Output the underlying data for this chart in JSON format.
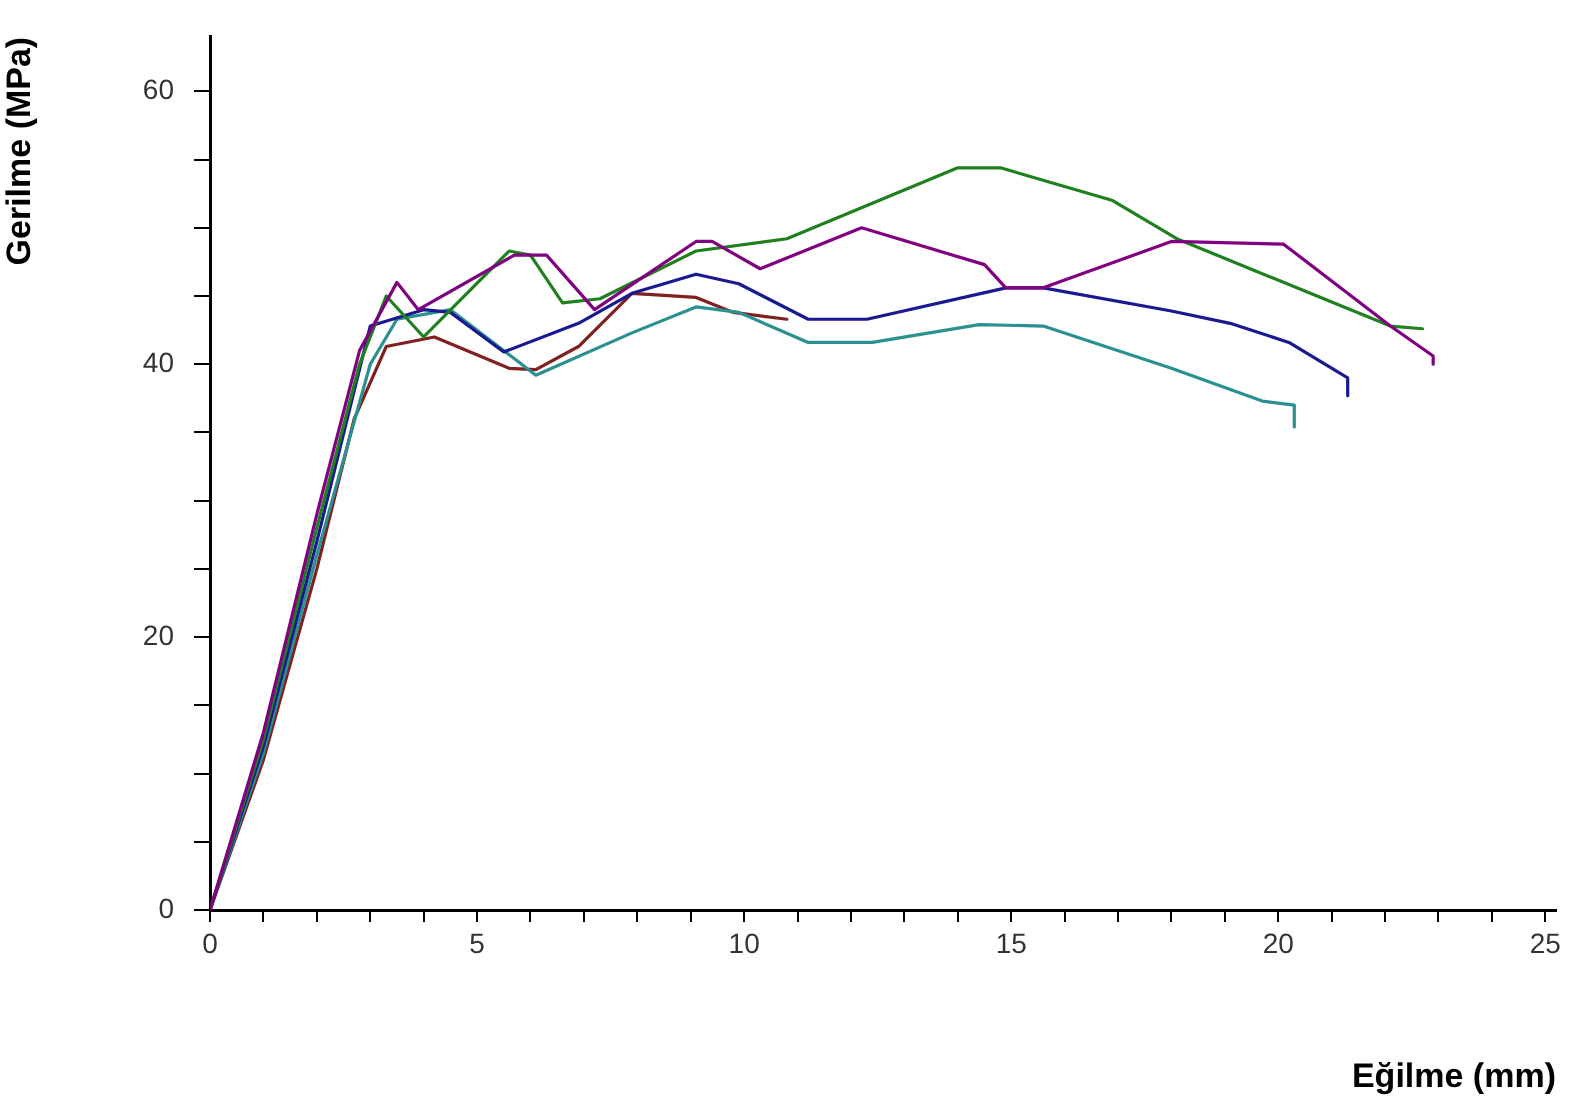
{
  "chart_data": {
    "type": "line",
    "xlabel": "Eğilme (mm)",
    "ylabel": "Gerilme (MPa)",
    "xlim": [
      0,
      25.2
    ],
    "ylim": [
      0,
      64
    ],
    "xticks": [
      0,
      {
        "value": 1,
        "label": null
      },
      {
        "value": 2,
        "label": null
      },
      {
        "value": 3,
        "label": null
      },
      {
        "value": 4,
        "label": null
      },
      5,
      {
        "value": 6,
        "label": null
      },
      {
        "value": 7,
        "label": null
      },
      {
        "value": 8,
        "label": null
      },
      {
        "value": 9,
        "label": null
      },
      10,
      {
        "value": 11,
        "label": null
      },
      {
        "value": 12,
        "label": null
      },
      {
        "value": 13,
        "label": null
      },
      {
        "value": 14,
        "label": null
      },
      15,
      {
        "value": 16,
        "label": null
      },
      {
        "value": 17,
        "label": null
      },
      {
        "value": 18,
        "label": null
      },
      {
        "value": 19,
        "label": null
      },
      20,
      {
        "value": 21,
        "label": null
      },
      {
        "value": 22,
        "label": null
      },
      {
        "value": 23,
        "label": null
      },
      {
        "value": 24,
        "label": null
      },
      25
    ],
    "yticks": [
      0,
      {
        "value": 5,
        "label": null
      },
      {
        "value": 10,
        "label": null
      },
      {
        "value": 15,
        "label": null
      },
      20,
      {
        "value": 25,
        "label": null
      },
      {
        "value": 30,
        "label": null
      },
      {
        "value": 35,
        "label": null
      },
      40,
      {
        "value": 45,
        "label": null
      },
      {
        "value": 50,
        "label": null
      },
      {
        "value": 55,
        "label": null
      },
      60
    ],
    "grid": false,
    "legend": false,
    "marker": "none",
    "line_style": "solid",
    "series": [
      {
        "color": "#800080",
        "x": [
          0,
          1,
          2,
          2.8,
          3.5,
          3.9,
          5.7,
          6.3,
          7.2,
          9.1,
          9.4,
          10.3,
          12.2,
          14.5,
          14.9,
          15.6,
          18,
          20.1,
          22.1,
          22.9,
          22.9
        ],
        "values": [
          0,
          13,
          29,
          41,
          46,
          44,
          48,
          48,
          44,
          49,
          49,
          47,
          50,
          47.3,
          45.6,
          45.6,
          49,
          48.8,
          42.8,
          40.6,
          40
        ]
      },
      {
        "color": "#208020",
        "x": [
          0,
          1,
          2,
          2.8,
          3.3,
          4,
          5.6,
          6,
          6.6,
          7.3,
          9.1,
          10.8,
          14,
          14.8,
          16.9,
          18.1,
          22.1,
          22.7
        ],
        "values": [
          0,
          12.5,
          28,
          40,
          45,
          42,
          48.3,
          48,
          44.5,
          44.8,
          48.3,
          49.2,
          54.4,
          54.4,
          52,
          49.2,
          42.8,
          42.6
        ]
      },
      {
        "color": "#1a1a90",
        "x": [
          0,
          1,
          2,
          3,
          4,
          4.5,
          5.5,
          6.9,
          7.9,
          9.1,
          9.9,
          11.2,
          12.3,
          14.9,
          15.6,
          18,
          19.1,
          20.2,
          21.3,
          21.3
        ],
        "values": [
          0,
          12,
          27,
          42.8,
          44,
          43.8,
          40.9,
          43,
          45.2,
          46.6,
          45.9,
          43.3,
          43.3,
          45.6,
          45.6,
          43.9,
          43,
          41.6,
          39,
          37.7
        ]
      },
      {
        "color": "#2a9090",
        "x": [
          0,
          1,
          2,
          3,
          3.5,
          4.5,
          5.4,
          6.1,
          7.9,
          9.1,
          9.9,
          11.2,
          12.4,
          14.4,
          15.6,
          18,
          19.7,
          20.3,
          20.3
        ],
        "values": [
          0,
          11.5,
          26,
          40,
          43.3,
          44,
          41.3,
          39.2,
          42.3,
          44.2,
          43.8,
          41.6,
          41.6,
          42.9,
          42.8,
          39.7,
          37.3,
          37,
          35.4
        ]
      },
      {
        "color": "#802020",
        "x": [
          0,
          1,
          2,
          2.7,
          3.3,
          4.2,
          5.6,
          6.1,
          6.9,
          7.9,
          9.1,
          9.8,
          10.8
        ],
        "values": [
          0,
          11,
          25,
          36,
          41.3,
          42,
          39.7,
          39.6,
          41.3,
          45.2,
          44.9,
          43.8,
          43.3
        ]
      }
    ]
  }
}
